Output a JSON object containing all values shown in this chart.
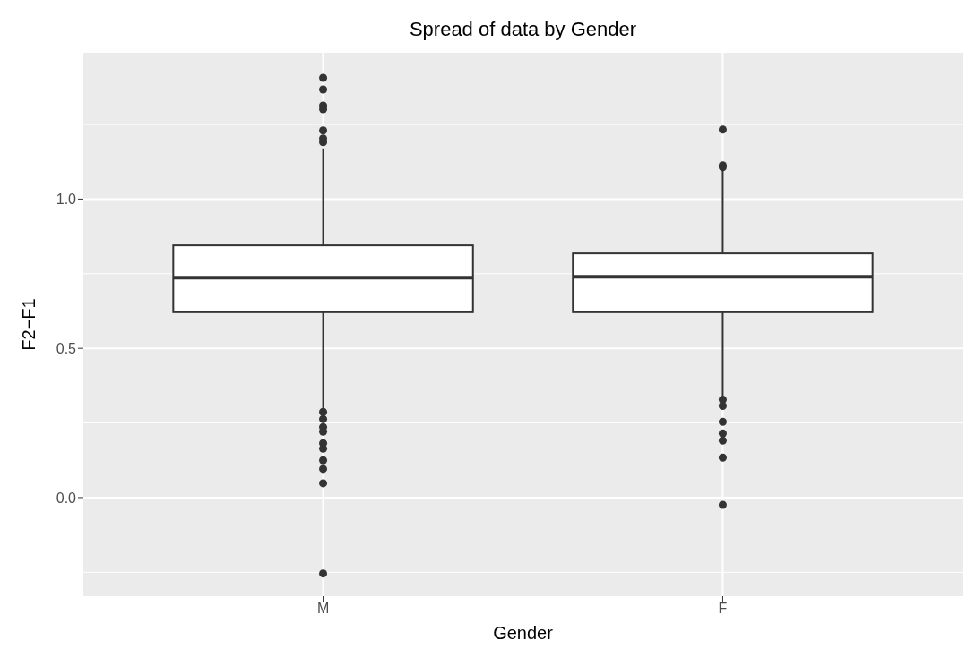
{
  "chart_data": {
    "type": "box",
    "title": "Spread of data by Gender",
    "xlabel": "Gender",
    "ylabel": "F2−F1",
    "categories": [
      "M",
      "F"
    ],
    "series": [
      {
        "color": "#333333",
        "boxes": [
          {
            "low": 0.3,
            "q1": 0.621,
            "median": 0.737,
            "q3": 0.845,
            "high": 1.17,
            "outliers": [
              1.406,
              1.367,
              1.313,
              1.301,
              1.23,
              1.203,
              1.191,
              0.287,
              0.263,
              0.236,
              0.221,
              0.182,
              0.164,
              0.125,
              0.096,
              0.048,
              -0.254
            ]
          },
          {
            "low": 0.34,
            "q1": 0.621,
            "median": 0.74,
            "q3": 0.818,
            "high": 1.1,
            "outliers": [
              1.233,
              1.113,
              1.107,
              0.328,
              0.307,
              0.254,
              0.215,
              0.191,
              0.134,
              -0.024
            ]
          }
        ]
      }
    ],
    "ylim": [
      -0.33,
      1.49
    ],
    "yticks": [
      {
        "value": 0,
        "label": "0.0"
      },
      {
        "value": 0.5,
        "label": "0.5"
      },
      {
        "value": 1,
        "label": "1.0"
      }
    ],
    "grid": true
  }
}
